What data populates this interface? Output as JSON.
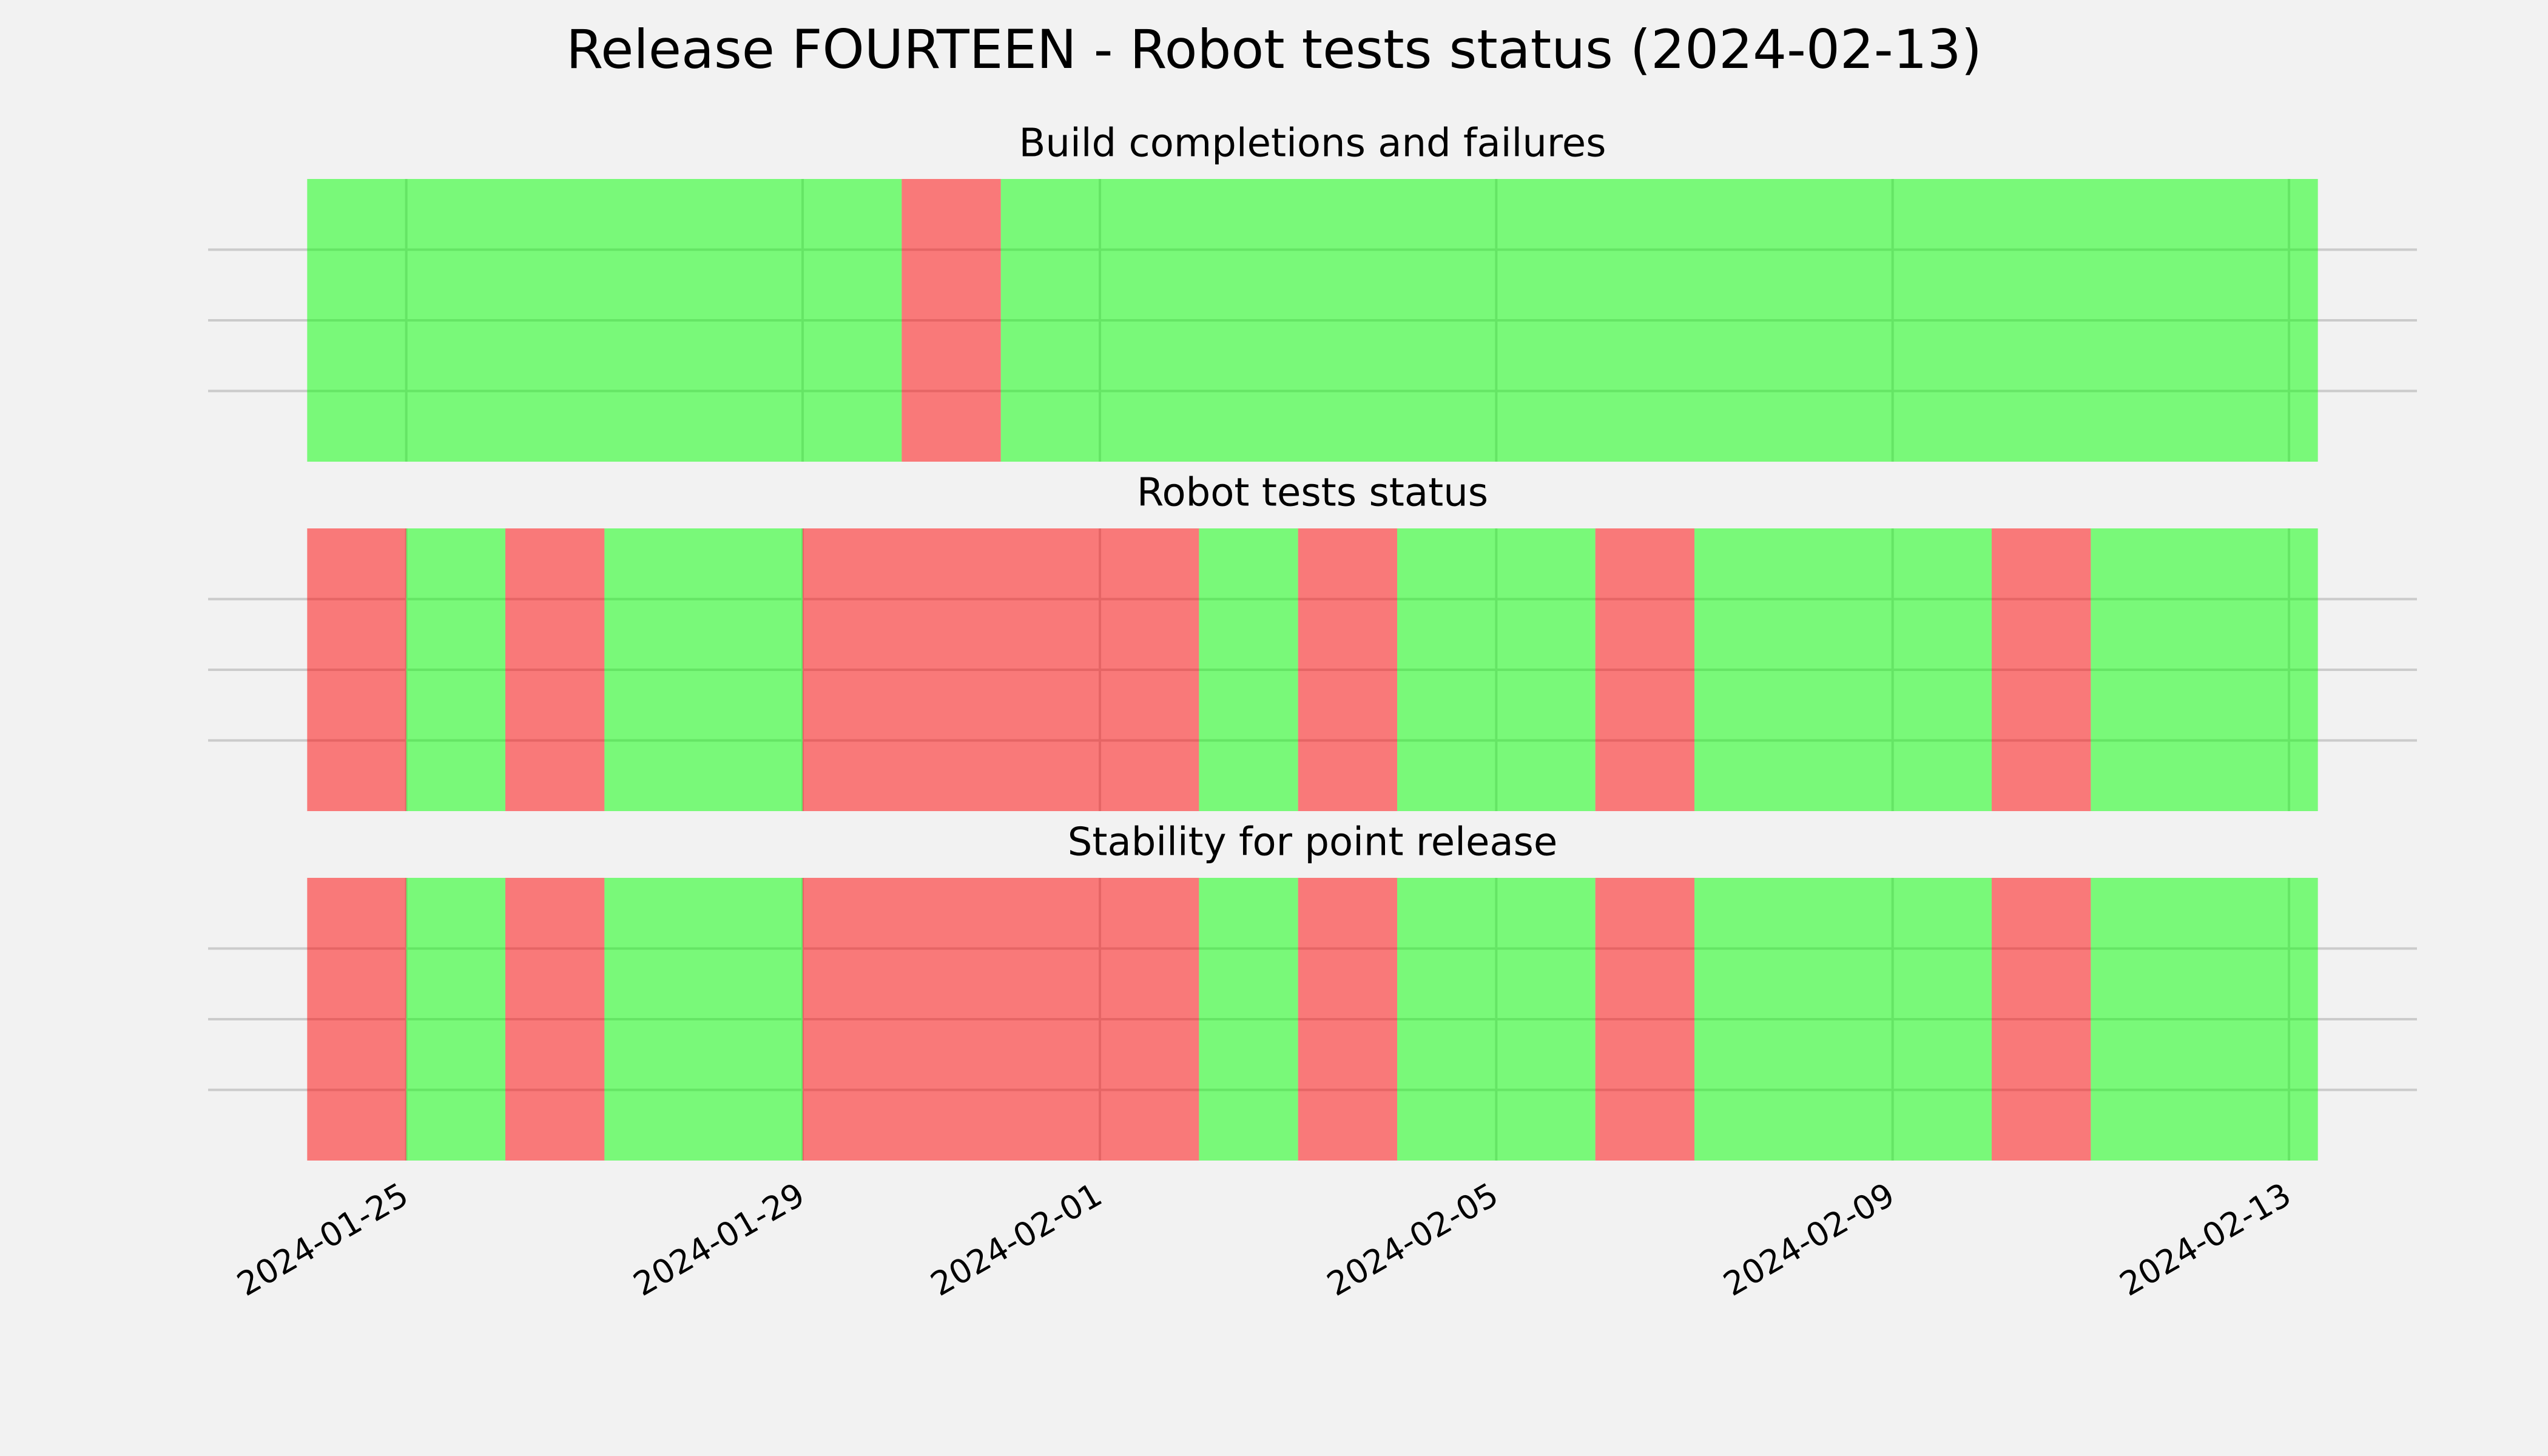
{
  "chart_data": {
    "type": "timeline",
    "title": "Release FOURTEEN - Robot tests status (2024-02-13)",
    "xlim": [
      "2024-01-23",
      "2024-02-14T07:00"
    ],
    "xticks": [
      "2024-01-25",
      "2024-01-29",
      "2024-02-01",
      "2024-02-05",
      "2024-02-09",
      "2024-02-13"
    ],
    "ylim": [
      0,
      1
    ],
    "yticks": [
      0.25,
      0.5,
      0.75
    ],
    "grid": true,
    "panels": [
      {
        "title": "Build completions and failures",
        "starts": [
          "2024-01-24",
          "2024-01-30",
          "2024-01-31"
        ],
        "colors": [
          "#00ff00",
          "#ff0000",
          "#00ff00"
        ],
        "end": "2024-02-13T07:00"
      },
      {
        "title": "Robot tests status",
        "starts": [
          "2024-01-24",
          "2024-01-25",
          "2024-01-26",
          "2024-01-27",
          "2024-01-29",
          "2024-02-02",
          "2024-02-03",
          "2024-02-04",
          "2024-02-06",
          "2024-02-07",
          "2024-02-10",
          "2024-02-11"
        ],
        "colors": [
          "#ff0000",
          "#00ff00",
          "#ff0000",
          "#00ff00",
          "#ff0000",
          "#00ff00",
          "#ff0000",
          "#00ff00",
          "#ff0000",
          "#00ff00",
          "#ff0000",
          "#00ff00"
        ],
        "end": "2024-02-13T07:00"
      },
      {
        "title": "Stability for point release",
        "starts": [
          "2024-01-24",
          "2024-01-25",
          "2024-01-26",
          "2024-01-27",
          "2024-01-29",
          "2024-02-02",
          "2024-02-03",
          "2024-02-04",
          "2024-02-06",
          "2024-02-07",
          "2024-02-10",
          "2024-02-11"
        ],
        "colors": [
          "#ff0000",
          "#00ff00",
          "#ff0000",
          "#00ff00",
          "#ff0000",
          "#00ff00",
          "#ff0000",
          "#00ff00",
          "#ff0000",
          "#00ff00",
          "#ff0000",
          "#00ff00"
        ],
        "end": "2024-02-13T07:00"
      }
    ]
  }
}
